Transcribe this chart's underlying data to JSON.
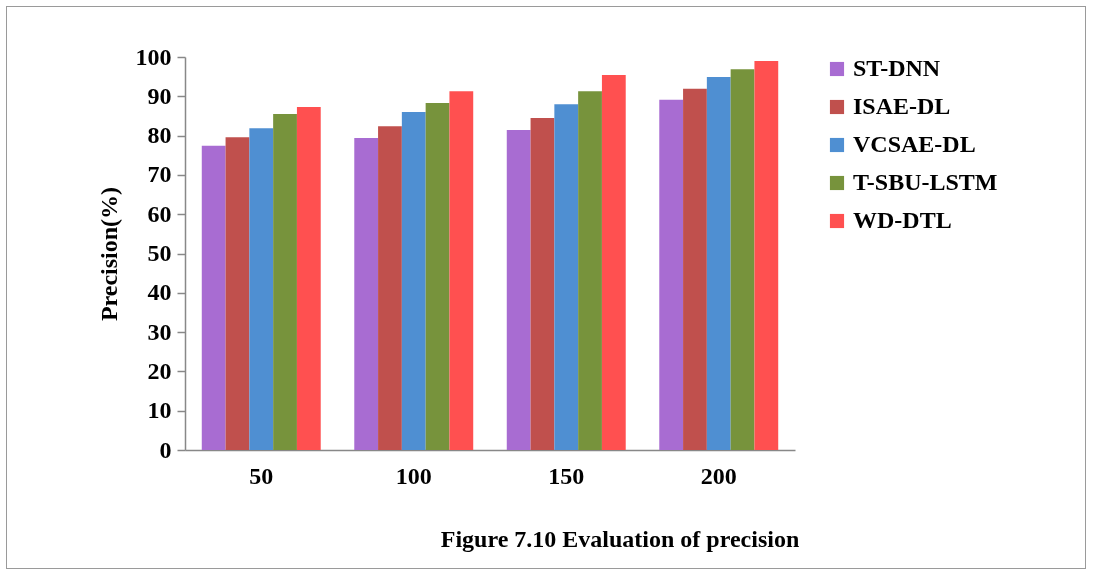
{
  "chart_data": {
    "type": "bar",
    "title": "Figure 7.10 Evaluation of precision",
    "ylabel": "Precision(%)",
    "categories": [
      "50",
      "100",
      "150",
      "200"
    ],
    "series": [
      {
        "name": "ST-DNN",
        "color": "#a86cd2",
        "values": [
          77.4,
          79.4,
          81.4,
          89.1
        ]
      },
      {
        "name": "ISAE-DL",
        "color": "#c0504d",
        "values": [
          79.6,
          82.4,
          84.5,
          91.9
        ]
      },
      {
        "name": "VCSAE-DL",
        "color": "#4f8fd2",
        "values": [
          81.9,
          86.0,
          88.0,
          94.9
        ]
      },
      {
        "name": "T-SBU-LSTM",
        "color": "#77933c",
        "values": [
          85.5,
          88.3,
          91.3,
          96.9
        ]
      },
      {
        "name": "WD-DTL",
        "color": "#ff5050",
        "values": [
          87.3,
          91.3,
          95.4,
          99.0
        ]
      }
    ],
    "ylim": [
      0,
      100
    ],
    "yticks": [
      0,
      10,
      20,
      30,
      40,
      50,
      60,
      70,
      80,
      90,
      100
    ],
    "grid": false,
    "legend": "right"
  }
}
